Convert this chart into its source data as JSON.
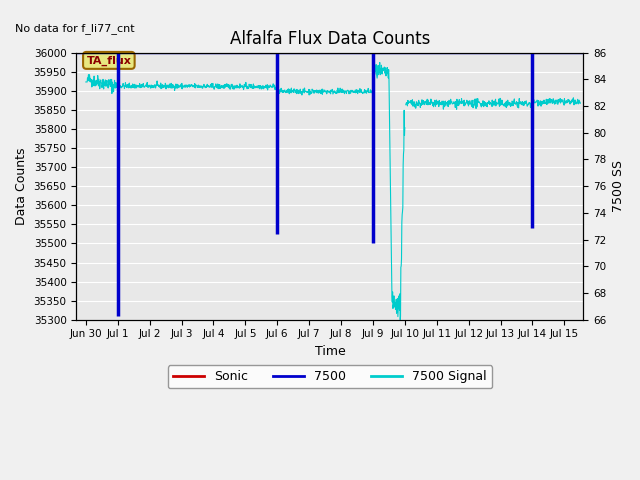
{
  "title": "Alfalfa Flux Data Counts",
  "ylabel_left": "Data Counts",
  "ylabel_right": "7500 SS",
  "xlabel": "Time",
  "no_data_text": "No data for f_li77_cnt",
  "ta_flux_label": "TA_flux",
  "ylim_left": [
    35300,
    36000
  ],
  "ylim_right": [
    66,
    86
  ],
  "yticks_left": [
    35300,
    35350,
    35400,
    35450,
    35500,
    35550,
    35600,
    35650,
    35700,
    35750,
    35800,
    35850,
    35900,
    35950,
    36000
  ],
  "yticks_right": [
    66,
    68,
    70,
    72,
    74,
    76,
    78,
    80,
    82,
    84,
    86
  ],
  "bg_color": "#e8e8e8",
  "fig_bg_color": "#f0f0f0",
  "blue_vline_color": "#0000cc",
  "cyan_line_color": "#00cccc",
  "red_line_color": "#cc0000",
  "title_fontsize": 12,
  "axis_label_fontsize": 9,
  "tick_fontsize": 7.5
}
